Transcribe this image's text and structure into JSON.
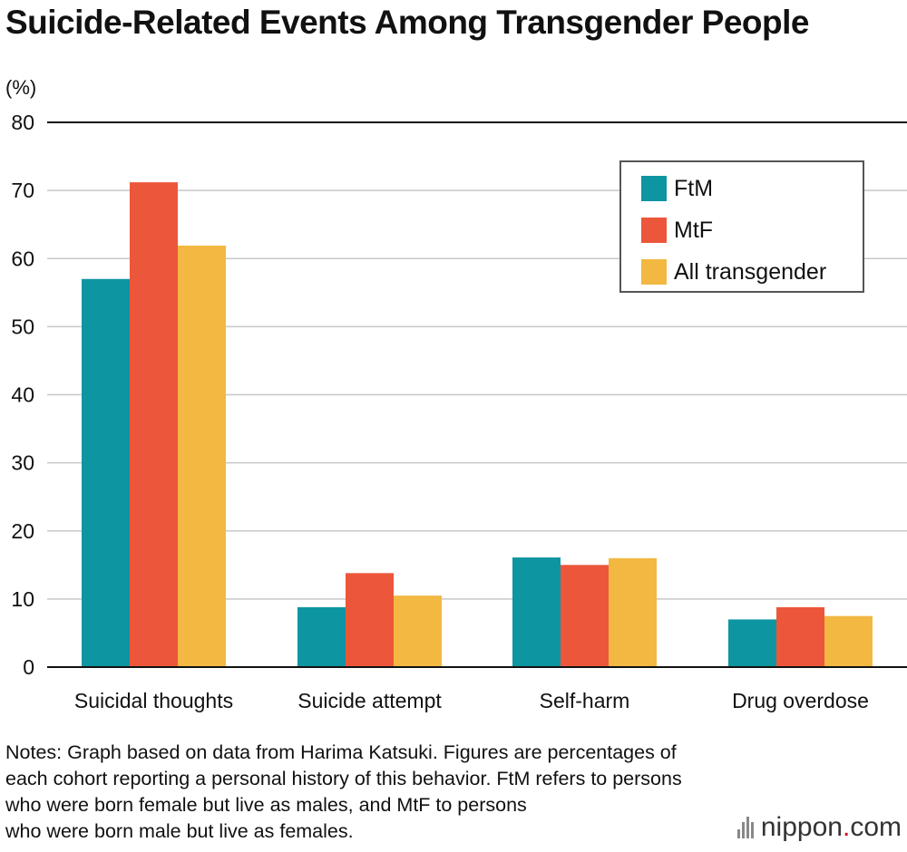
{
  "title": "Suicide-Related Events Among Transgender People",
  "unit_label": "(%)",
  "legend": [
    {
      "label": "FtM",
      "color": "#0d95a1"
    },
    {
      "label": "MtF",
      "color": "#ec563a"
    },
    {
      "label": "All transgender",
      "color": "#f2b842"
    }
  ],
  "notes": [
    "Notes: Graph based on data from Harima Katsuki. Figures are percentages of",
    "each cohort reporting a personal history of this behavior. FtM refers to persons",
    "who were born female but live as males, and MtF to persons",
    "who were born male but live as females."
  ],
  "logo": {
    "name": "nippon",
    "dot": ".",
    "suffix": "com"
  },
  "chart_data": {
    "type": "bar",
    "title": "Suicide-Related Events Among Transgender People",
    "ylabel": "(%)",
    "xlabel": "",
    "ylim": [
      0,
      80
    ],
    "yticks": [
      0,
      10,
      20,
      30,
      40,
      50,
      60,
      70,
      80
    ],
    "grid": true,
    "legend_position": "top-right",
    "categories": [
      "Suicidal thoughts",
      "Suicide attempt",
      "Self-harm",
      "Drug overdose"
    ],
    "series": [
      {
        "name": "FtM",
        "color": "#0d95a1",
        "values": [
          57.0,
          8.8,
          16.1,
          7.0
        ]
      },
      {
        "name": "MtF",
        "color": "#ec563a",
        "values": [
          71.2,
          13.8,
          15.0,
          8.8
        ]
      },
      {
        "name": "All transgender",
        "color": "#f2b842",
        "values": [
          61.9,
          10.5,
          16.0,
          7.5
        ]
      }
    ]
  }
}
